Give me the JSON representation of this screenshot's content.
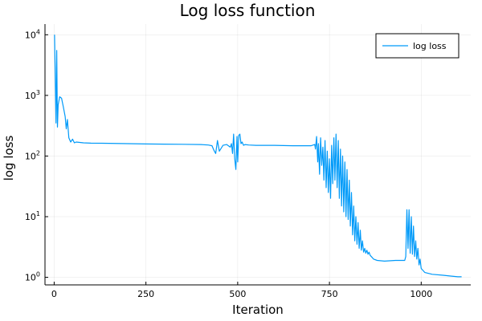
{
  "chart_data": {
    "type": "line",
    "title": "Log loss function",
    "xlabel": "Iteration",
    "ylabel": "log loss",
    "yscale": "log",
    "xlim": [
      -25,
      1135
    ],
    "ylim": [
      0.75,
      15000
    ],
    "xticks": [
      0,
      250,
      500,
      750,
      1000
    ],
    "yticks": [
      {
        "value": 1,
        "base": "10",
        "exp": "0"
      },
      {
        "value": 10,
        "base": "10",
        "exp": "1"
      },
      {
        "value": 100,
        "base": "10",
        "exp": "2"
      },
      {
        "value": 1000,
        "base": "10",
        "exp": "3"
      },
      {
        "value": 10000,
        "base": "10",
        "exp": "4"
      }
    ],
    "grid": true,
    "legend_position": "top-right",
    "series": [
      {
        "name": "log loss",
        "color": "#009AF9",
        "x": [
          1,
          3,
          5,
          7,
          9,
          11,
          15,
          20,
          25,
          30,
          33,
          36,
          40,
          45,
          50,
          55,
          60,
          80,
          100,
          150,
          200,
          250,
          300,
          350,
          400,
          420,
          430,
          435,
          440,
          445,
          450,
          460,
          470,
          480,
          483,
          486,
          489,
          492,
          495,
          498,
          500,
          503,
          506,
          509,
          512,
          516,
          520,
          530,
          550,
          600,
          650,
          700,
          710,
          712,
          715,
          718,
          720,
          723,
          726,
          729,
          732,
          735,
          738,
          741,
          744,
          747,
          750,
          753,
          756,
          759,
          762,
          765,
          768,
          771,
          774,
          777,
          780,
          783,
          786,
          789,
          792,
          795,
          798,
          801,
          804,
          807,
          810,
          813,
          816,
          819,
          822,
          825,
          828,
          831,
          834,
          837,
          840,
          843,
          846,
          849,
          852,
          855,
          858,
          861,
          864,
          867,
          870,
          880,
          900,
          930,
          955,
          958,
          961,
          964,
          967,
          970,
          973,
          976,
          979,
          982,
          985,
          988,
          991,
          994,
          997,
          1000,
          1010,
          1030,
          1060,
          1080,
          1100,
          1110
        ],
        "y": [
          10000,
          2000,
          350,
          5500,
          300,
          700,
          950,
          900,
          650,
          450,
          280,
          400,
          200,
          170,
          190,
          165,
          170,
          165,
          163,
          162,
          160,
          158,
          157,
          156,
          155,
          152,
          148,
          125,
          110,
          180,
          120,
          150,
          155,
          140,
          160,
          110,
          230,
          90,
          60,
          210,
          80,
          220,
          230,
          160,
          170,
          150,
          155,
          152,
          150,
          150,
          148,
          148,
          155,
          130,
          210,
          80,
          160,
          50,
          200,
          70,
          140,
          40,
          180,
          30,
          120,
          25,
          90,
          20,
          150,
          35,
          200,
          40,
          230,
          30,
          180,
          20,
          130,
          15,
          100,
          12,
          80,
          10,
          60,
          9,
          40,
          7,
          25,
          5,
          15,
          4,
          10,
          3.5,
          8,
          3,
          6,
          2.8,
          4,
          2.6,
          3,
          2.5,
          2.8,
          2.4,
          2.6,
          2.3,
          2.2,
          2.1,
          2,
          1.9,
          1.85,
          1.9,
          1.9,
          2.2,
          13,
          3,
          13,
          2.5,
          10,
          2.4,
          7,
          2.2,
          4,
          2,
          3,
          1.6,
          2,
          1.4,
          1.2,
          1.12,
          1.08,
          1.05,
          1.02,
          1.02
        ]
      }
    ]
  }
}
